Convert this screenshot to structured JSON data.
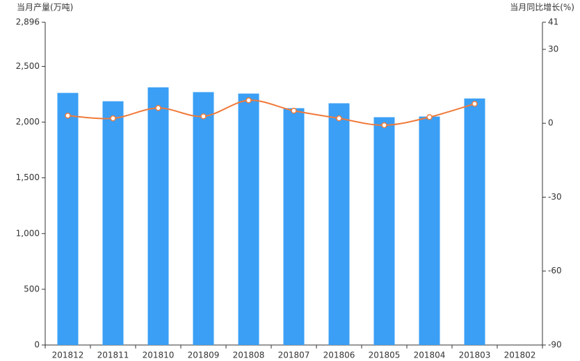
{
  "chart_data": {
    "type": "bar-line",
    "y_label": "当月产量(万吨)",
    "y2_label": "当月同比增长(%)",
    "categories": [
      "201812",
      "201811",
      "201810",
      "201809",
      "201808",
      "201807",
      "201806",
      "201805",
      "201804",
      "201803",
      "201802"
    ],
    "series": [
      {
        "name": "当月产量",
        "type": "bar",
        "color": "#3a9ff5",
        "values": [
          2262,
          2187,
          2312,
          2269,
          2256,
          2125,
          2169,
          2044,
          2050,
          2212,
          null
        ]
      },
      {
        "name": "当月同比增长",
        "type": "line",
        "axis": "y2",
        "color": "#f07a3a",
        "values": [
          3.1,
          2.0,
          6.2,
          2.8,
          9.3,
          5.1,
          2.0,
          -0.8,
          2.5,
          7.9,
          null
        ]
      }
    ],
    "ylim": [
      0,
      2896
    ],
    "yticks": [
      0,
      500,
      {
        "value": 1000,
        "label": "1,000"
      },
      {
        "value": 1500,
        "label": "1,500"
      },
      {
        "value": 2000,
        "label": "2,000"
      },
      {
        "value": 2500,
        "label": "2,500"
      },
      {
        "value": 2896,
        "label": "2,896"
      }
    ],
    "y2lim": [
      -90,
      41
    ],
    "y2ticks": [
      -90,
      -60,
      -30,
      0,
      30,
      41
    ]
  }
}
